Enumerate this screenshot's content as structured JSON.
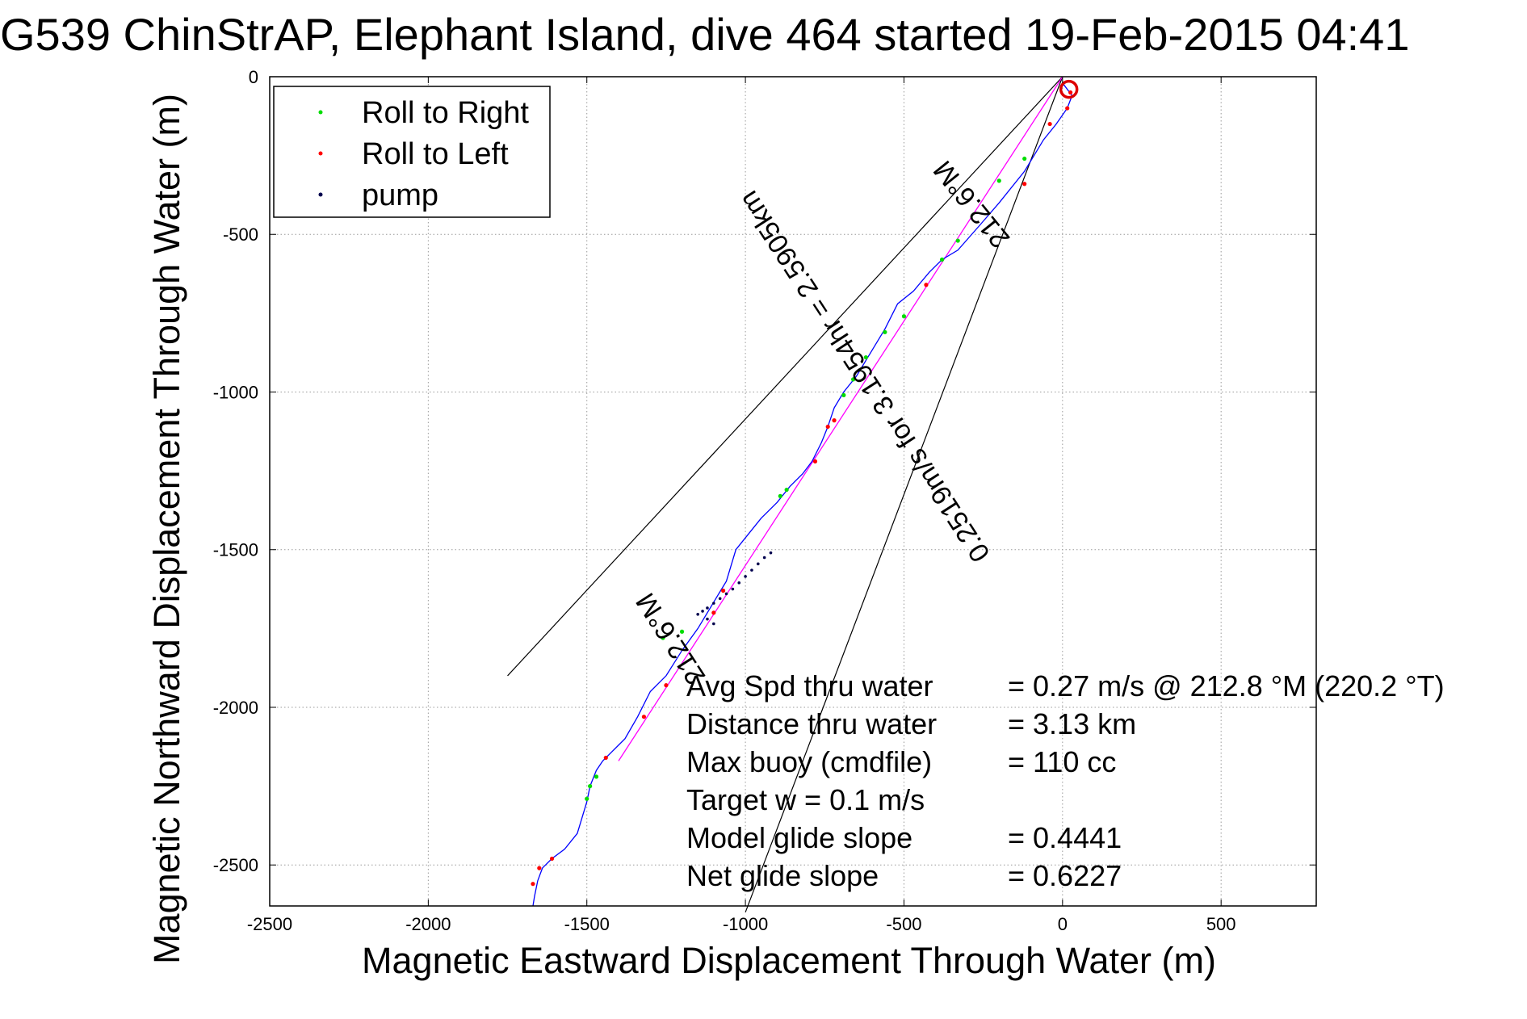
{
  "chart_data": {
    "type": "line",
    "title": "G539 ChinStrAP, Elephant Island, dive 464 started 19-Feb-2015 04:41",
    "xlabel": "Magnetic Eastward Displacement Through Water (m)",
    "ylabel": "Magnetic Northward Displacement Through Water (m)",
    "xlim": [
      -2500,
      800
    ],
    "ylim": [
      -2630,
      0
    ],
    "xticks": [
      -2500,
      -2000,
      -1500,
      -1000,
      -500,
      0,
      500
    ],
    "yticks": [
      0,
      -500,
      -1000,
      -1500,
      -2000,
      -2500
    ],
    "grid": true,
    "legend_position": "top-left",
    "legend": [
      {
        "label": "Roll to Right",
        "color": "#00dd00"
      },
      {
        "label": "Roll to Left",
        "color": "#ff0000"
      },
      {
        "label": "pump",
        "color": "#00004d"
      }
    ],
    "track": {
      "name": "track",
      "color": "#0000ff",
      "x": [
        0,
        30,
        15,
        -20,
        -60,
        -120,
        -200,
        -260,
        -330,
        -380,
        -420,
        -470,
        -520,
        -560,
        -590,
        -620,
        -650,
        -690,
        -720,
        -740,
        -760,
        -790,
        -820,
        -860,
        -900,
        -950,
        -990,
        -1030,
        -1060,
        -1090,
        -1120,
        -1150,
        -1200,
        -1250,
        -1300,
        -1340,
        -1380,
        -1420,
        -1450,
        -1470,
        -1490,
        -1500,
        -1530,
        -1570,
        -1610,
        -1640,
        -1655,
        -1665,
        -1670
      ],
      "y": [
        -20,
        -60,
        -100,
        -150,
        -200,
        -300,
        -400,
        -470,
        -550,
        -580,
        -620,
        -680,
        -720,
        -800,
        -850,
        -900,
        -950,
        -1000,
        -1050,
        -1110,
        -1160,
        -1220,
        -1260,
        -1300,
        -1350,
        -1400,
        -1450,
        -1500,
        -1600,
        -1650,
        -1700,
        -1750,
        -1820,
        -1900,
        -1950,
        -2030,
        -2100,
        -2140,
        -2170,
        -2200,
        -2250,
        -2300,
        -2400,
        -2450,
        -2480,
        -2510,
        -2550,
        -2600,
        -2630
      ]
    },
    "pump_points": {
      "x": [
        -920,
        -940,
        -960,
        -980,
        -1000,
        -1020,
        -1040,
        -1060,
        -1080,
        -1100,
        -1120,
        -1135,
        -1150,
        -1120,
        -1100
      ],
      "y": [
        -1510,
        -1525,
        -1545,
        -1565,
        -1585,
        -1605,
        -1625,
        -1640,
        -1655,
        -1670,
        -1685,
        -1695,
        -1705,
        -1720,
        -1735
      ]
    },
    "roll_right_points": {
      "x": [
        -120,
        -200,
        -330,
        -380,
        -500,
        -560,
        -620,
        -660,
        -690,
        -870,
        -890,
        -1200,
        -1260,
        -1470,
        -1490,
        -1500
      ],
      "y": [
        -260,
        -330,
        -520,
        -580,
        -760,
        -810,
        -890,
        -960,
        -1010,
        -1310,
        -1330,
        -1760,
        -1780,
        -2220,
        -2250,
        -2290
      ]
    },
    "roll_left_points": {
      "x": [
        25,
        15,
        -40,
        -120,
        -430,
        -720,
        -740,
        -780,
        -1070,
        -1100,
        -1250,
        -1320,
        -1440,
        -1610,
        -1650,
        -1670
      ],
      "y": [
        -50,
        -100,
        -150,
        -340,
        -660,
        -1090,
        -1110,
        -1220,
        -1630,
        -1700,
        -1930,
        -2030,
        -2160,
        -2480,
        -2510,
        -2560
      ]
    },
    "start_circle": {
      "x": 20,
      "y": -40,
      "color": "#dd0000"
    },
    "avg_heading_line": {
      "x": [
        0,
        -1400
      ],
      "y": [
        0,
        -2170
      ],
      "color": "#ff00ff"
    },
    "cone_lines": [
      {
        "x": [
          0,
          -1750
        ],
        "y": [
          0,
          -1900
        ]
      },
      {
        "x": [
          0,
          -1000
        ],
        "y": [
          0,
          -2650
        ]
      }
    ],
    "line_annotations": [
      "212.6°M",
      "0.2519m/s for 3.1954hr = 2.5905km",
      "212.6°M"
    ],
    "stats": [
      {
        "label": "Avg Spd thru water",
        "value": "=  0.27 m/s @ 212.8 °M (220.2 °T)"
      },
      {
        "label": "Distance thru water",
        "value": "=  3.13 km"
      },
      {
        "label": "Max buoy (cmdfile)",
        "value": "= 110 cc"
      },
      {
        "label": "Target w    = 0.1 m/s",
        "value": ""
      },
      {
        "label": "Model glide slope",
        "value": "= 0.4441"
      },
      {
        "label": "Net glide slope",
        "value": "= 0.6227"
      }
    ]
  }
}
